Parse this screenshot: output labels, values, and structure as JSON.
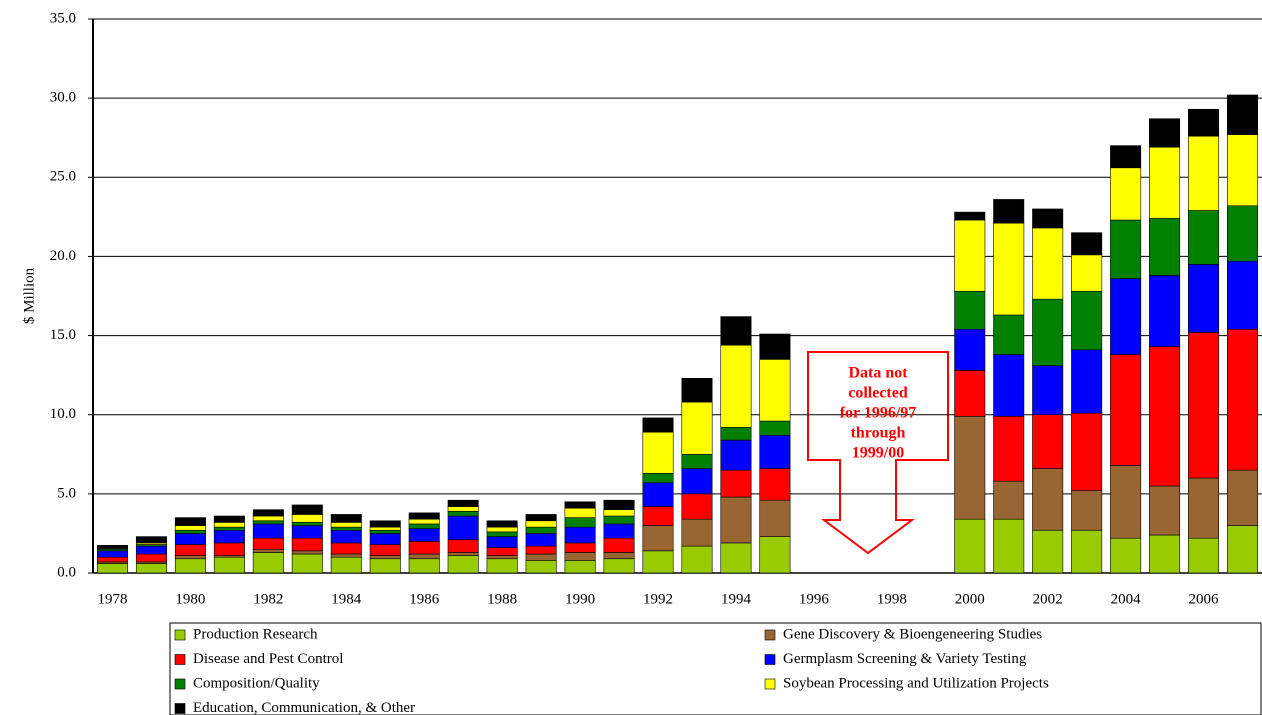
{
  "chart_data": {
    "type": "stacked-bar",
    "y_label": "$ Million",
    "categories": [
      "1978",
      null,
      "1980",
      null,
      "1982",
      null,
      "1984",
      null,
      "1986",
      null,
      "1988",
      null,
      "1990",
      null,
      "1992",
      null,
      "1994",
      null,
      "1996",
      null,
      "1998",
      null,
      "2000",
      null,
      "2002",
      null,
      "2004",
      null,
      "2006",
      null
    ],
    "series": [
      {
        "name": "Production Research",
        "color": "#99cc00",
        "values": [
          0.6,
          0.6,
          0.9,
          1.0,
          1.3,
          1.2,
          1.0,
          0.9,
          0.9,
          1.1,
          0.9,
          0.8,
          0.8,
          0.9,
          1.4,
          1.7,
          1.9,
          2.3,
          null,
          null,
          null,
          null,
          3.4,
          3.4,
          2.7,
          2.7,
          2.2,
          2.4,
          2.2,
          3.0
        ]
      },
      {
        "name": "Gene Discovery & Bioengeneering Studies",
        "color": "#996633",
        "values": [
          0.1,
          0.1,
          0.2,
          0.1,
          0.2,
          0.2,
          0.2,
          0.2,
          0.3,
          0.2,
          0.2,
          0.4,
          0.5,
          0.4,
          1.6,
          1.7,
          2.9,
          2.3,
          null,
          null,
          null,
          null,
          6.5,
          2.4,
          3.9,
          2.5,
          4.6,
          3.1,
          3.8,
          3.5
        ]
      },
      {
        "name": "Disease and Pest Control",
        "color": "#ff0000",
        "values": [
          0.3,
          0.5,
          0.7,
          0.8,
          0.7,
          0.8,
          0.7,
          0.7,
          0.8,
          0.8,
          0.5,
          0.5,
          0.6,
          0.9,
          1.2,
          1.6,
          1.7,
          2.0,
          null,
          null,
          null,
          null,
          2.9,
          4.1,
          3.4,
          4.9,
          7.0,
          8.8,
          9.2,
          8.9
        ]
      },
      {
        "name": "Germplasm Screening & Variety Testing",
        "color": "#0000ff",
        "values": [
          0.4,
          0.5,
          0.7,
          0.8,
          0.9,
          0.8,
          0.8,
          0.7,
          0.8,
          1.5,
          0.7,
          0.8,
          1.0,
          0.9,
          1.5,
          1.6,
          1.9,
          2.1,
          null,
          null,
          null,
          null,
          2.6,
          3.9,
          3.1,
          4.0,
          4.8,
          4.5,
          4.3,
          4.3
        ]
      },
      {
        "name": "Composition/Quality",
        "color": "#008000",
        "values": [
          0.1,
          0.1,
          0.2,
          0.2,
          0.2,
          0.2,
          0.2,
          0.2,
          0.3,
          0.3,
          0.3,
          0.4,
          0.6,
          0.5,
          0.6,
          0.9,
          0.8,
          0.9,
          null,
          null,
          null,
          null,
          2.4,
          2.5,
          4.2,
          3.7,
          3.7,
          3.6,
          3.4,
          3.5
        ]
      },
      {
        "name": "Soybean Processing and Utilization Projects",
        "color": "#ffff00",
        "values": [
          0.05,
          0.1,
          0.3,
          0.3,
          0.3,
          0.5,
          0.3,
          0.2,
          0.3,
          0.3,
          0.3,
          0.4,
          0.6,
          0.4,
          2.6,
          3.3,
          5.2,
          3.9,
          null,
          null,
          null,
          null,
          4.5,
          5.8,
          4.5,
          2.3,
          3.3,
          4.5,
          4.7,
          4.5
        ]
      },
      {
        "name": "Education, Communication, & Other",
        "color": "#000000",
        "values": [
          0.2,
          0.4,
          0.5,
          0.4,
          0.4,
          0.6,
          0.5,
          0.4,
          0.4,
          0.4,
          0.4,
          0.4,
          0.4,
          0.6,
          0.9,
          1.5,
          1.8,
          1.6,
          null,
          null,
          null,
          null,
          0.5,
          1.5,
          1.2,
          1.4,
          1.4,
          1.8,
          1.7,
          2.5
        ]
      }
    ],
    "ylim": [
      0,
      35
    ],
    "yticks": [
      {
        "value": 0,
        "label": "0.0"
      },
      {
        "value": 5,
        "label": "5.0"
      },
      {
        "value": 10,
        "label": "10.0"
      },
      {
        "value": 15,
        "label": "15.0"
      },
      {
        "value": 20,
        "label": "20.0"
      },
      {
        "value": 25,
        "label": "25.0"
      },
      {
        "value": 30,
        "label": "30.0"
      },
      {
        "value": 35,
        "label": "35.0"
      }
    ],
    "grid": true,
    "annotation": [
      "Data not",
      "collected",
      "for 1996/97",
      "through",
      "1999/00"
    ]
  }
}
